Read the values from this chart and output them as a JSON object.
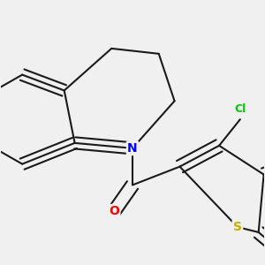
{
  "background_color": "#f0f0f0",
  "bond_color": "#1a1a1a",
  "atom_colors": {
    "N": "#0000ff",
    "O": "#ff0000",
    "S": "#ccaa00",
    "Cl": "#00cc00"
  },
  "figsize": [
    3.0,
    3.0
  ],
  "dpi": 100
}
